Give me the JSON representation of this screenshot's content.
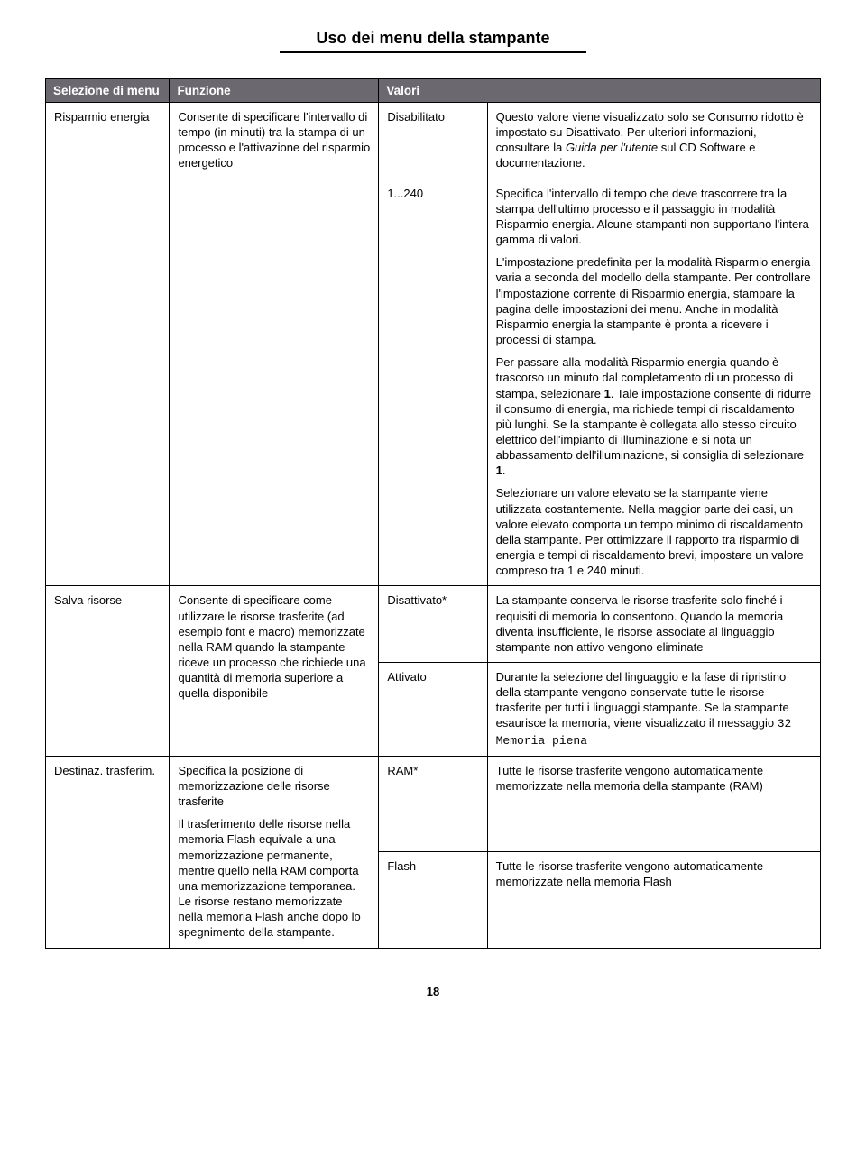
{
  "page_title": "Uso dei menu della stampante",
  "page_number": "18",
  "headers": {
    "col1": "Selezione di menu",
    "col2": "Funzione",
    "col3": "Valori",
    "col3b": ""
  },
  "rows": {
    "risparmio": {
      "menu": "Risparmio energia",
      "funzione": "Consente di specificare l'intervallo di tempo (in minuti) tra la stampa di un processo e l'attivazione del risparmio energetico",
      "val1": "Disabilitato",
      "val1_desc_a": "Questo valore viene visualizzato solo se Consumo ridotto è impostato su Disattivato. Per ulteriori informazioni, consultare la ",
      "val1_desc_ital": "Guida per l'utente",
      "val1_desc_b": " sul CD Software e documentazione.",
      "val2": "1...240",
      "val2_p1": "Specifica l'intervallo di tempo che deve trascorrere tra la stampa dell'ultimo processo e il passaggio in modalità Risparmio energia. Alcune stampanti non supportano l'intera gamma di valori.",
      "val2_p2": "L'impostazione predefinita per la modalità Risparmio energia varia a seconda del modello della stampante. Per controllare l'impostazione corrente di Risparmio energia, stampare la pagina delle impostazioni dei menu. Anche in modalità Risparmio energia la stampante è pronta a ricevere i processi di stampa.",
      "val2_p3_a": "Per passare alla modalità Risparmio energia quando è trascorso un minuto dal completamento di un processo di stampa, selezionare ",
      "val2_p3_b1": "1",
      "val2_p3_c": ". Tale impostazione consente di ridurre il consumo di energia, ma richiede tempi di riscaldamento più lunghi. Se la stampante è collegata allo stesso circuito elettrico dell'impianto di illuminazione e si nota un abbassamento dell'illuminazione, si consiglia di selezionare ",
      "val2_p3_b2": "1",
      "val2_p3_d": ".",
      "val2_p4": "Selezionare un valore elevato se la stampante viene utilizzata costantemente. Nella maggior parte dei casi, un valore elevato comporta un tempo minimo di riscaldamento della stampante. Per ottimizzare il rapporto tra risparmio di energia e tempi di riscaldamento brevi, impostare un valore compreso tra 1 e 240 minuti."
    },
    "salva": {
      "menu": "Salva risorse",
      "funzione": "Consente di specificare come utilizzare le risorse trasferite (ad esempio font e macro) memorizzate nella RAM quando la stampante riceve un processo che richiede una quantità di memoria superiore a quella disponibile",
      "val1": "Disattivato*",
      "val1_desc": "La stampante conserva le risorse trasferite solo finché i requisiti di memoria lo consentono. Quando la memoria diventa insufficiente, le risorse associate al linguaggio stampante non attivo vengono eliminate",
      "val2": "Attivato",
      "val2_desc_a": "Durante la selezione del linguaggio e la fase di ripristino della stampante vengono conservate tutte le risorse trasferite per tutti i linguaggi stampante. Se la stampante esaurisce la memoria, viene visualizzato il messaggio ",
      "val2_desc_mono": "32 Memoria piena"
    },
    "destinaz": {
      "menu": "Destinaz. trasferim.",
      "funzione_p1": "Specifica la posizione di memorizzazione delle risorse trasferite",
      "funzione_p2": "Il trasferimento delle risorse nella memoria Flash equivale a una memorizzazione permanente, mentre quello nella RAM comporta una memorizzazione temporanea. Le risorse restano memorizzate nella memoria Flash anche dopo lo spegnimento della stampante.",
      "val1": "RAM*",
      "val1_desc": "Tutte le risorse trasferite vengono automaticamente memorizzate nella memoria della stampante (RAM)",
      "val2": "Flash",
      "val2_desc": "Tutte le risorse trasferite vengono automaticamente memorizzate nella memoria Flash"
    }
  }
}
